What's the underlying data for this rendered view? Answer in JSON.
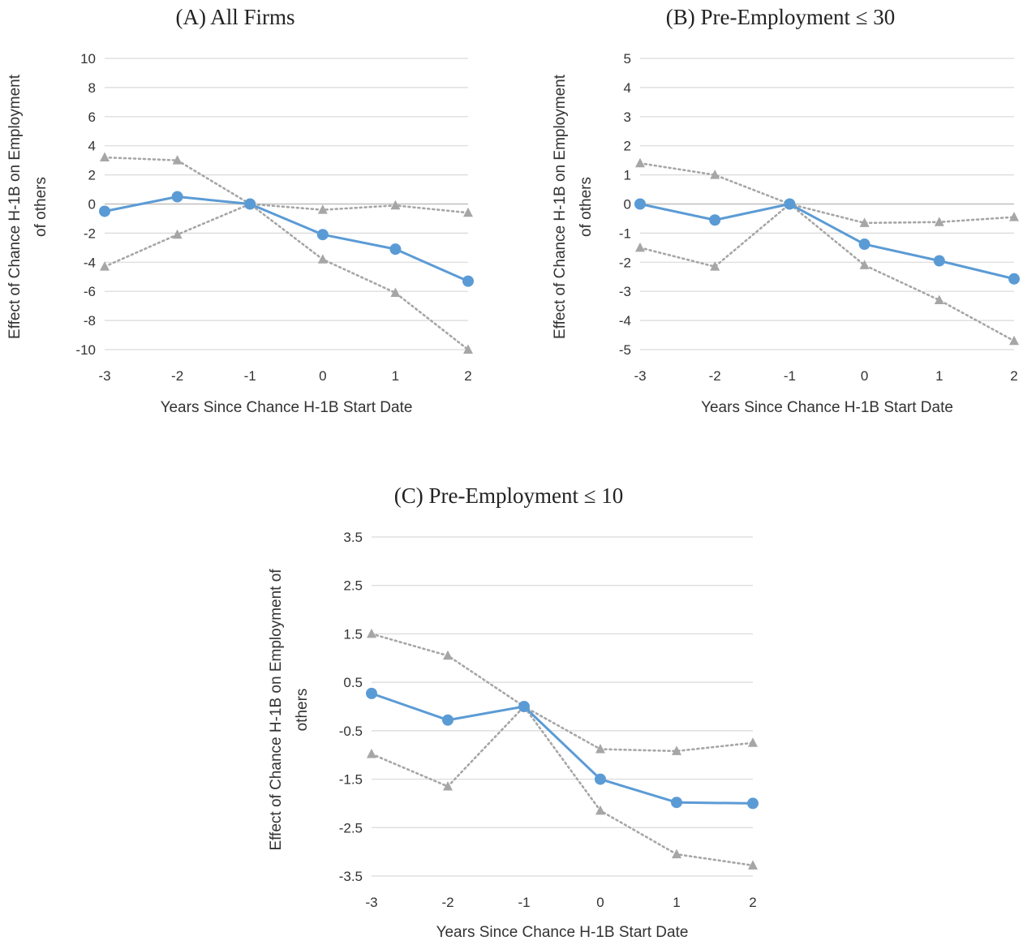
{
  "colors": {
    "estimate": "#5b9bd5",
    "confidence_band": "#a6a6a6",
    "grid": "#d9d9d9"
  },
  "chart_data": [
    {
      "type": "line",
      "title": "(A) All Firms",
      "xlabel": "Years Since Chance H-1B Start Date",
      "ylabel": [
        "Effect of Chance H-1B on Employment",
        "of others"
      ],
      "x": [
        -3,
        -2,
        -1,
        0,
        1,
        2
      ],
      "x_tick_labels": [
        "-3",
        "-2",
        "-1",
        "0",
        "1",
        "2"
      ],
      "ylim": [
        -10,
        10
      ],
      "y_ticks": [
        10,
        8,
        6,
        4,
        2,
        0,
        -2,
        -4,
        -6,
        -8,
        -10
      ],
      "y_tick_labels": [
        "10",
        "8",
        "6",
        "4",
        "2",
        "0",
        "-2",
        "-4",
        "-6",
        "-8",
        "-10"
      ],
      "grid": true,
      "series": [
        {
          "role": "upper",
          "marker": "triangle",
          "style": "dotted",
          "values": [
            3.2,
            3.0,
            0.0,
            -0.4,
            -0.1,
            -0.6
          ]
        },
        {
          "role": "lower",
          "marker": "triangle",
          "style": "dotted",
          "values": [
            -4.3,
            -2.1,
            0.0,
            -3.8,
            -6.1,
            -10.0
          ]
        },
        {
          "role": "estimate",
          "marker": "circle",
          "style": "solid",
          "values": [
            -0.5,
            0.5,
            0.0,
            -2.1,
            -3.1,
            -5.3
          ]
        }
      ]
    },
    {
      "type": "line",
      "title": "(B) Pre-Employment ≤ 30",
      "xlabel": "Years Since Chance H-1B Start Date",
      "ylabel": [
        "Effect of Chance H-1B on Employment",
        "of others"
      ],
      "x": [
        -3,
        -2,
        -1,
        0,
        1,
        2
      ],
      "x_tick_labels": [
        "-3",
        "-2",
        "-1",
        "0",
        "1",
        "2"
      ],
      "ylim": [
        -5,
        5
      ],
      "y_ticks": [
        5,
        4,
        3,
        2,
        1,
        0,
        -1,
        -2,
        -3,
        -4,
        -5
      ],
      "y_tick_labels": [
        "5",
        "4",
        "3",
        "2",
        "1",
        "0",
        "-1",
        "-2",
        "-3",
        "-4",
        "-5"
      ],
      "grid": true,
      "series": [
        {
          "role": "upper",
          "marker": "triangle",
          "style": "dotted",
          "values": [
            1.4,
            1.0,
            0.0,
            -0.65,
            -0.62,
            -0.45
          ]
        },
        {
          "role": "lower",
          "marker": "triangle",
          "style": "dotted",
          "values": [
            -1.5,
            -2.15,
            0.0,
            -2.1,
            -3.3,
            -4.7
          ]
        },
        {
          "role": "estimate",
          "marker": "circle",
          "style": "solid",
          "values": [
            0.0,
            -0.55,
            0.0,
            -1.38,
            -1.95,
            -2.57
          ]
        }
      ]
    },
    {
      "type": "line",
      "title": "(C) Pre-Employment ≤ 10",
      "xlabel": "Years Since Chance H-1B Start Date",
      "ylabel": [
        "Effect of Chance H-1B on Employment of",
        "others"
      ],
      "x": [
        -3,
        -2,
        -1,
        0,
        1,
        2
      ],
      "x_tick_labels": [
        "-3",
        "-2",
        "-1",
        "0",
        "1",
        "2"
      ],
      "ylim": [
        -3.5,
        3.5
      ],
      "y_ticks": [
        3.5,
        2.5,
        1.5,
        0.5,
        -0.5,
        -1.5,
        -2.5,
        -3.5
      ],
      "y_tick_labels": [
        "3.5",
        "2.5",
        "1.5",
        "0.5",
        "-0.5",
        "-1.5",
        "-2.5",
        "-3.5"
      ],
      "grid": true,
      "series": [
        {
          "role": "upper",
          "marker": "triangle",
          "style": "dotted",
          "values": [
            1.5,
            1.05,
            0.0,
            -0.88,
            -0.92,
            -0.75
          ]
        },
        {
          "role": "lower",
          "marker": "triangle",
          "style": "dotted",
          "values": [
            -0.98,
            -1.65,
            0.0,
            -2.15,
            -3.05,
            -3.28
          ]
        },
        {
          "role": "estimate",
          "marker": "circle",
          "style": "solid",
          "values": [
            0.27,
            -0.28,
            0.0,
            -1.5,
            -1.98,
            -2.0
          ]
        }
      ]
    }
  ]
}
